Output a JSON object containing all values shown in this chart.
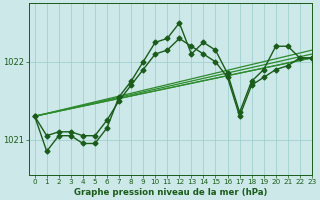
{
  "background_color": "#cce8e8",
  "plot_bg_color": "#cce8e8",
  "grid_color": "#99cccc",
  "line_color_dark": "#1a5c1a",
  "line_color_light": "#2e8b2e",
  "title": "Graphe pression niveau de la mer (hPa)",
  "xlim": [
    -0.5,
    23
  ],
  "ylim": [
    1020.55,
    1022.75
  ],
  "yticks": [
    1021,
    1022
  ],
  "xticks": [
    0,
    1,
    2,
    3,
    4,
    5,
    6,
    7,
    8,
    9,
    10,
    11,
    12,
    13,
    14,
    15,
    16,
    17,
    18,
    19,
    20,
    21,
    22,
    23
  ],
  "series": [
    {
      "x": [
        0,
        1,
        2,
        3,
        4,
        5,
        6,
        7,
        8,
        9,
        10,
        11,
        12,
        13,
        14,
        15,
        16,
        17,
        18,
        19,
        20,
        21,
        22,
        23
      ],
      "y": [
        1021.3,
        1020.85,
        1021.05,
        1021.05,
        1020.95,
        1020.95,
        1021.15,
        1021.55,
        1021.75,
        1022.0,
        1022.25,
        1022.3,
        1022.5,
        1022.1,
        1022.25,
        1022.15,
        1021.85,
        1021.35,
        1021.75,
        1021.9,
        1022.2,
        1022.2,
        1022.05,
        1022.05
      ],
      "style": "dark",
      "marker": "D",
      "markersize": 2.5,
      "linewidth": 1.0
    },
    {
      "x": [
        0,
        1,
        2,
        3,
        4,
        5,
        6,
        7,
        8,
        9,
        10,
        11,
        12,
        13,
        14,
        15,
        16,
        17,
        18,
        19,
        20,
        21,
        22,
        23
      ],
      "y": [
        1021.3,
        1021.05,
        1021.1,
        1021.1,
        1021.05,
        1021.05,
        1021.25,
        1021.5,
        1021.7,
        1021.9,
        1022.1,
        1022.15,
        1022.3,
        1022.2,
        1022.1,
        1022.0,
        1021.8,
        1021.3,
        1021.7,
        1021.8,
        1021.9,
        1021.95,
        1022.05,
        1022.05
      ],
      "style": "dark",
      "marker": "D",
      "markersize": 2.5,
      "linewidth": 1.0
    },
    {
      "x": [
        0,
        23
      ],
      "y": [
        1021.3,
        1022.05
      ],
      "style": "light",
      "marker": null,
      "linewidth": 0.9
    },
    {
      "x": [
        0,
        23
      ],
      "y": [
        1021.3,
        1022.1
      ],
      "style": "light",
      "marker": null,
      "linewidth": 0.9
    },
    {
      "x": [
        0,
        23
      ],
      "y": [
        1021.3,
        1022.15
      ],
      "style": "light",
      "marker": null,
      "linewidth": 0.9
    },
    {
      "x": [
        0,
        23
      ],
      "y": [
        1021.3,
        1022.05
      ],
      "style": "light",
      "marker": null,
      "linewidth": 0.9
    }
  ]
}
